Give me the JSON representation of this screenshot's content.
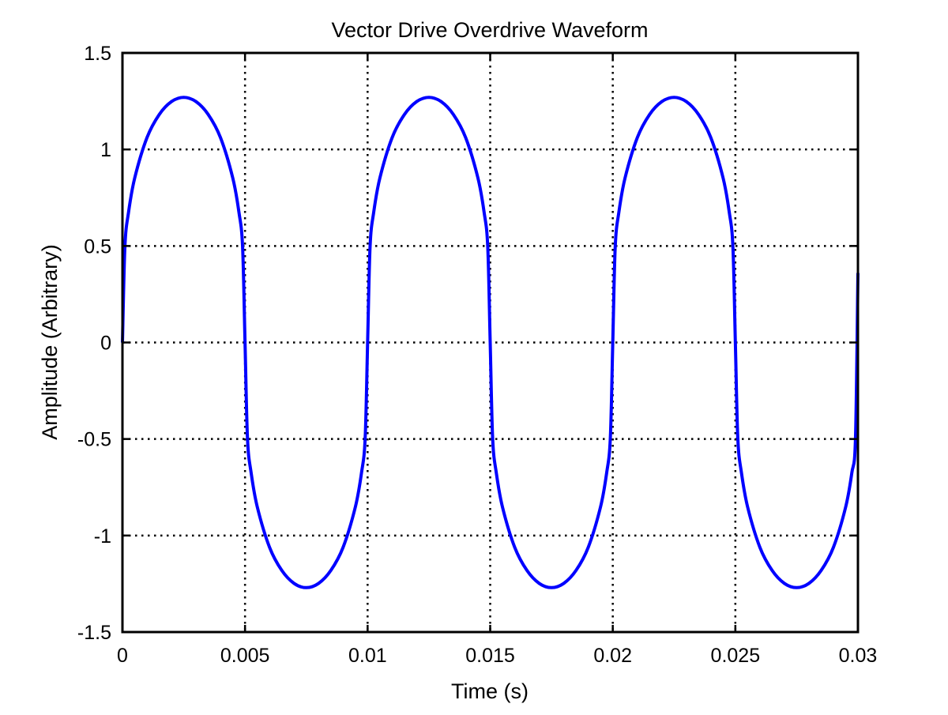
{
  "chart_data": {
    "type": "line",
    "title": "Vector Drive Overdrive Waveform",
    "xlabel": "Time (s)",
    "ylabel": "Amplitude (Arbitrary)",
    "xlim": [
      0,
      0.03
    ],
    "ylim": [
      -1.5,
      1.5
    ],
    "xticks": [
      0,
      0.005,
      0.01,
      0.015,
      0.02,
      0.025,
      0.03
    ],
    "xtick_labels": [
      "0",
      "0.005",
      "0.01",
      "0.015",
      "0.02",
      "0.025",
      "0.03"
    ],
    "yticks": [
      -1.5,
      -1,
      -0.5,
      0,
      0.5,
      1,
      1.5
    ],
    "ytick_labels": [
      "-1.5",
      "-1",
      "-0.5",
      "0",
      "0.5",
      "1",
      "1.5"
    ],
    "grid": true,
    "grid_style": "dotted",
    "series": [
      {
        "color": "#0000ff",
        "points": [
          [
            0,
            0
          ],
          [
            0.0001,
            0.496
          ],
          [
            0.00025,
            0.676
          ],
          [
            0.0005,
            0.852
          ],
          [
            0.001,
            1.061
          ],
          [
            0.0015,
            1.181
          ],
          [
            0.002,
            1.248
          ],
          [
            0.0025,
            1.27
          ],
          [
            0.003,
            1.248
          ],
          [
            0.0035,
            1.181
          ],
          [
            0.004,
            1.061
          ],
          [
            0.0045,
            0.852
          ],
          [
            0.00475,
            0.676
          ],
          [
            0.0049,
            0.496
          ],
          [
            0.005,
            0
          ],
          [
            0.0051,
            -0.496
          ],
          [
            0.00525,
            -0.676
          ],
          [
            0.0055,
            -0.852
          ],
          [
            0.006,
            -1.061
          ],
          [
            0.0065,
            -1.181
          ],
          [
            0.007,
            -1.248
          ],
          [
            0.0075,
            -1.27
          ],
          [
            0.008,
            -1.248
          ],
          [
            0.0085,
            -1.181
          ],
          [
            0.009,
            -1.061
          ],
          [
            0.0095,
            -0.852
          ],
          [
            0.00975,
            -0.676
          ],
          [
            0.0099,
            -0.496
          ],
          [
            0.01,
            0
          ],
          [
            0.0101,
            0.496
          ],
          [
            0.01025,
            0.676
          ],
          [
            0.0105,
            0.852
          ],
          [
            0.011,
            1.061
          ],
          [
            0.0115,
            1.181
          ],
          [
            0.012,
            1.248
          ],
          [
            0.0125,
            1.27
          ],
          [
            0.013,
            1.248
          ],
          [
            0.0135,
            1.181
          ],
          [
            0.014,
            1.061
          ],
          [
            0.0145,
            0.852
          ],
          [
            0.01475,
            0.676
          ],
          [
            0.0149,
            0.496
          ],
          [
            0.015,
            0
          ],
          [
            0.0151,
            -0.496
          ],
          [
            0.01525,
            -0.676
          ],
          [
            0.0155,
            -0.852
          ],
          [
            0.016,
            -1.061
          ],
          [
            0.0165,
            -1.181
          ],
          [
            0.017,
            -1.248
          ],
          [
            0.0175,
            -1.27
          ],
          [
            0.018,
            -1.248
          ],
          [
            0.0185,
            -1.181
          ],
          [
            0.019,
            -1.061
          ],
          [
            0.0195,
            -0.852
          ],
          [
            0.01975,
            -0.676
          ],
          [
            0.0199,
            -0.496
          ],
          [
            0.02,
            0
          ],
          [
            0.0201,
            0.496
          ],
          [
            0.02025,
            0.676
          ],
          [
            0.0205,
            0.852
          ],
          [
            0.021,
            1.061
          ],
          [
            0.0215,
            1.181
          ],
          [
            0.022,
            1.248
          ],
          [
            0.0225,
            1.27
          ],
          [
            0.023,
            1.248
          ],
          [
            0.0235,
            1.181
          ],
          [
            0.024,
            1.061
          ],
          [
            0.0245,
            0.852
          ],
          [
            0.02475,
            0.676
          ],
          [
            0.0249,
            0.496
          ],
          [
            0.025,
            0
          ],
          [
            0.0251,
            -0.496
          ],
          [
            0.02525,
            -0.676
          ],
          [
            0.0255,
            -0.852
          ],
          [
            0.026,
            -1.061
          ],
          [
            0.0265,
            -1.181
          ],
          [
            0.027,
            -1.248
          ],
          [
            0.0275,
            -1.27
          ],
          [
            0.028,
            -1.248
          ],
          [
            0.0285,
            -1.181
          ],
          [
            0.029,
            -1.061
          ],
          [
            0.0295,
            -0.852
          ],
          [
            0.02975,
            -0.676
          ],
          [
            0.0299,
            -0.496
          ],
          [
            0.03,
            0.36
          ]
        ]
      }
    ]
  }
}
